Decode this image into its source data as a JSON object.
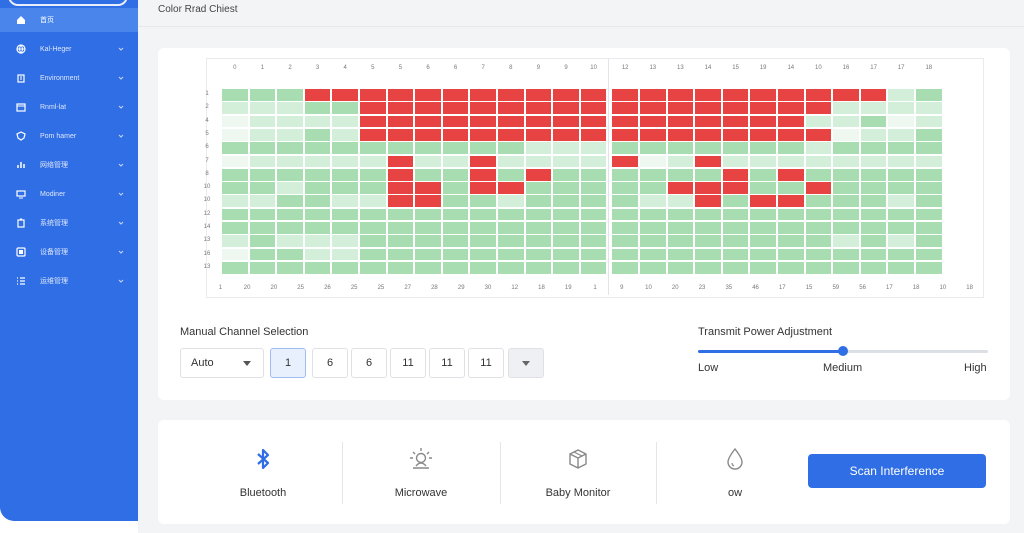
{
  "sidebar": {
    "items": [
      {
        "label": "首页",
        "icon": "home-icon",
        "active": true
      },
      {
        "label": "Kal-Heger",
        "icon": "globe-icon"
      },
      {
        "label": "Environment",
        "icon": "building-icon"
      },
      {
        "label": "Rnml-lat",
        "icon": "calendar-icon"
      },
      {
        "label": "Pom hamer",
        "icon": "shield-icon"
      },
      {
        "label": "网络管理",
        "icon": "chart-icon"
      },
      {
        "label": "Modiner",
        "icon": "monitor-icon"
      },
      {
        "label": "系统管理",
        "icon": "clipboard-icon"
      },
      {
        "label": "设备管理",
        "icon": "device-icon"
      },
      {
        "label": "运维管理",
        "icon": "list-icon"
      }
    ]
  },
  "header": {
    "title": "Color Rrad Chiest"
  },
  "heatmap": {
    "top_labels": [
      "0",
      "1",
      "2",
      "3",
      "4",
      "5",
      "5",
      "6",
      "6",
      "7",
      "8",
      "9",
      "9",
      "10",
      "12",
      "13",
      "13",
      "14",
      "15",
      "19",
      "14",
      "10",
      "16",
      "17",
      "17",
      "18"
    ],
    "row_labels": [
      "1",
      "2",
      "4",
      "5",
      "6",
      "7",
      "8",
      "10",
      "10",
      "12",
      "14",
      "13",
      "16",
      "13"
    ],
    "bottom_labels": [
      "1",
      "20",
      "20",
      "25",
      "26",
      "25",
      "25",
      "27",
      "28",
      "29",
      "30",
      "12",
      "18",
      "19",
      "1",
      "9",
      "10",
      "20",
      "23",
      "35",
      "46",
      "17",
      "15",
      "59",
      "56",
      "17",
      "18",
      "10",
      "18"
    ],
    "colors": {
      "high": "#e84343",
      "mid": "#a8ddb2",
      "low": "#d3efd9",
      "faint": "#eef8f0",
      "empty": "#ffffff"
    }
  },
  "manual": {
    "label": "Manual Channel Selection",
    "select_value": "Auto",
    "channels": [
      "1",
      "6",
      "6",
      "11",
      "11",
      "11"
    ],
    "selected_index": 0
  },
  "power": {
    "label": "Transmit Power Adjustment",
    "low": "Low",
    "medium": "Medium",
    "high": "High",
    "level": 0.5
  },
  "sources": [
    {
      "name": "Bluetooth",
      "icon": "bluetooth-icon"
    },
    {
      "name": "Microwave",
      "icon": "microwave-icon"
    },
    {
      "name": "Baby Monitor",
      "icon": "baby-monitor-icon"
    },
    {
      "name": "ow",
      "icon": "droplet-icon"
    }
  ],
  "scan": {
    "label": "Scan Interference"
  }
}
